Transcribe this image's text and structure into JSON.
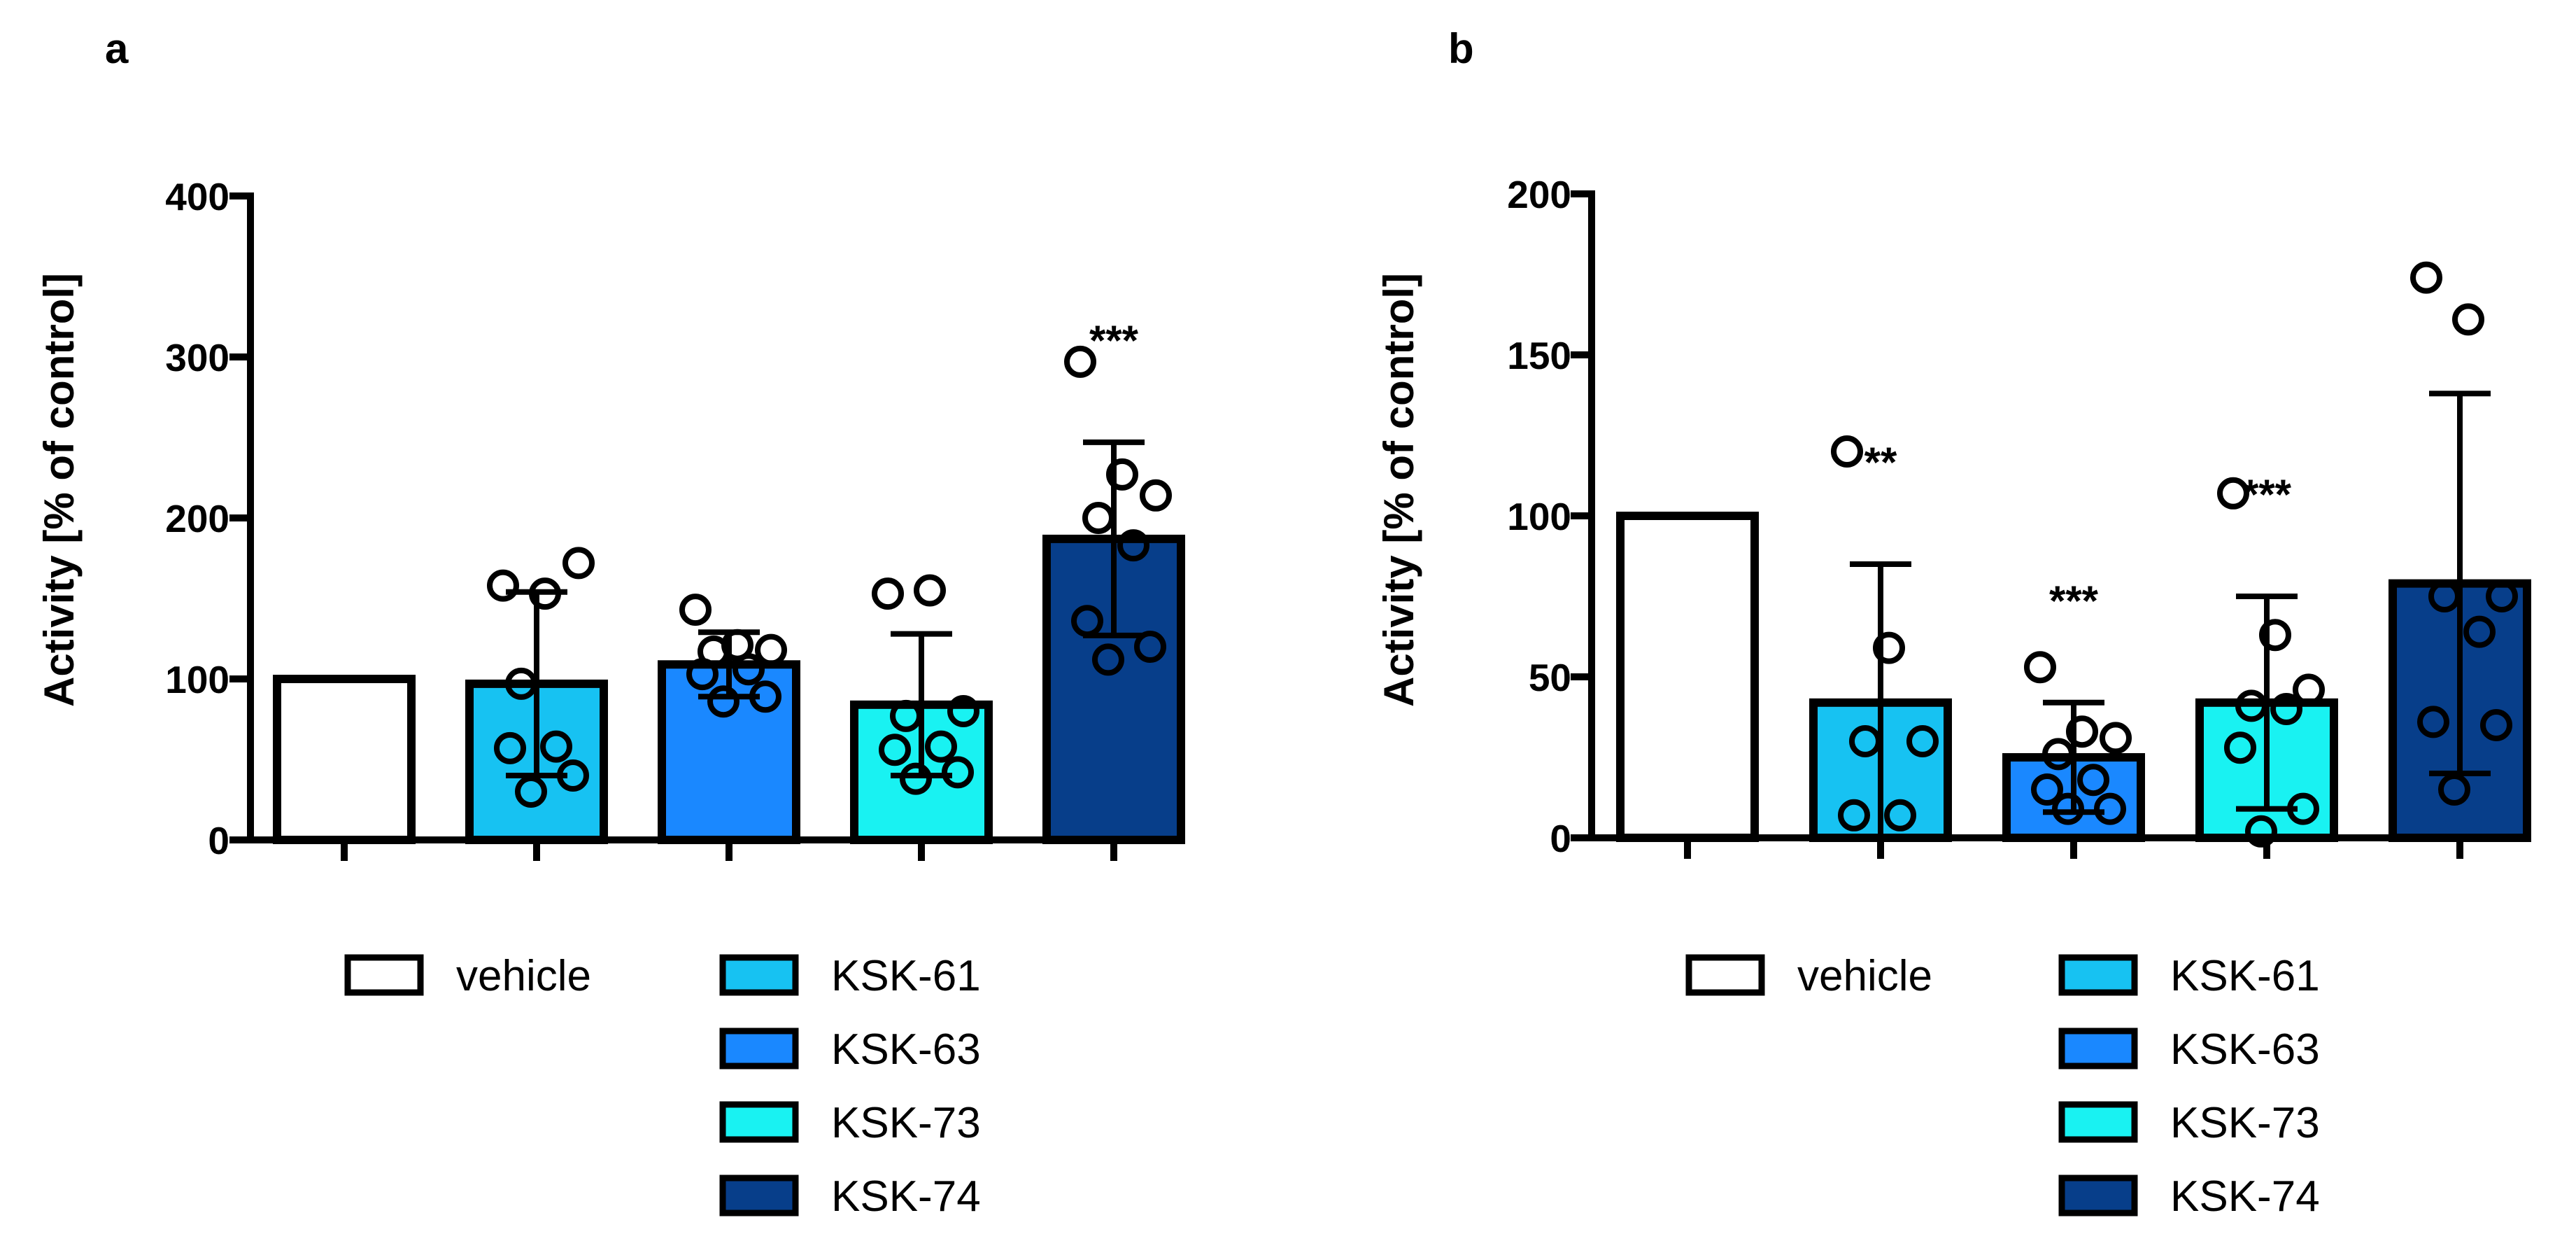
{
  "chart_data": [
    {
      "panel_label": "a",
      "type": "bar",
      "ylabel": "Activity [% of control]",
      "ylim": [
        0,
        400
      ],
      "yticks": [
        0,
        100,
        200,
        300,
        400
      ],
      "categories": [
        "vehicle",
        "KSK-61",
        "KSK-63",
        "KSK-73",
        "KSK-74"
      ],
      "values": [
        100,
        97,
        109,
        84,
        187
      ],
      "sd": [
        0,
        57,
        20,
        44,
        60
      ],
      "significance": [
        "",
        "",
        "",
        "",
        "***"
      ],
      "points": [
        [],
        [
          158,
          153,
          172,
          97,
          58,
          57,
          40,
          30
        ],
        [
          143,
          121,
          118,
          117,
          106,
          103,
          89,
          86
        ],
        [
          153,
          155,
          80,
          77,
          58,
          56,
          42,
          38
        ],
        [
          297,
          227,
          214,
          200,
          183,
          136,
          120,
          112
        ]
      ],
      "colors": [
        "#ffffff",
        "#17c2f2",
        "#1a88ff",
        "#19f2f2",
        "#073e8a"
      ],
      "legend_position": "below"
    },
    {
      "panel_label": "b",
      "type": "bar",
      "ylabel": "Activity [% of control]",
      "ylim": [
        0,
        200
      ],
      "yticks": [
        0,
        50,
        100,
        150,
        200
      ],
      "categories": [
        "vehicle",
        "KSK-61",
        "KSK-63",
        "KSK-73",
        "KSK-74"
      ],
      "values": [
        100,
        42,
        25,
        42,
        79
      ],
      "sd": [
        0,
        43,
        17,
        33,
        59
      ],
      "significance": [
        "",
        "**",
        "***",
        "***",
        ""
      ],
      "points": [
        [],
        [
          120,
          59,
          30,
          30,
          7,
          7
        ],
        [
          53,
          33,
          31,
          26,
          18,
          15,
          9,
          9
        ],
        [
          107,
          63,
          46,
          41,
          40,
          28,
          9,
          2
        ],
        [
          174,
          161,
          75,
          75,
          64,
          36,
          35,
          15
        ]
      ],
      "colors": [
        "#ffffff",
        "#17c2f2",
        "#1a88ff",
        "#19f2f2",
        "#073e8a"
      ],
      "legend_position": "below"
    }
  ],
  "legend": [
    {
      "label": "vehicle",
      "color": "#ffffff"
    },
    {
      "label": "KSK-61",
      "color": "#17c2f2"
    },
    {
      "label": "KSK-63",
      "color": "#1a88ff"
    },
    {
      "label": "KSK-73",
      "color": "#19f2f2"
    },
    {
      "label": "KSK-74",
      "color": "#073e8a"
    }
  ]
}
